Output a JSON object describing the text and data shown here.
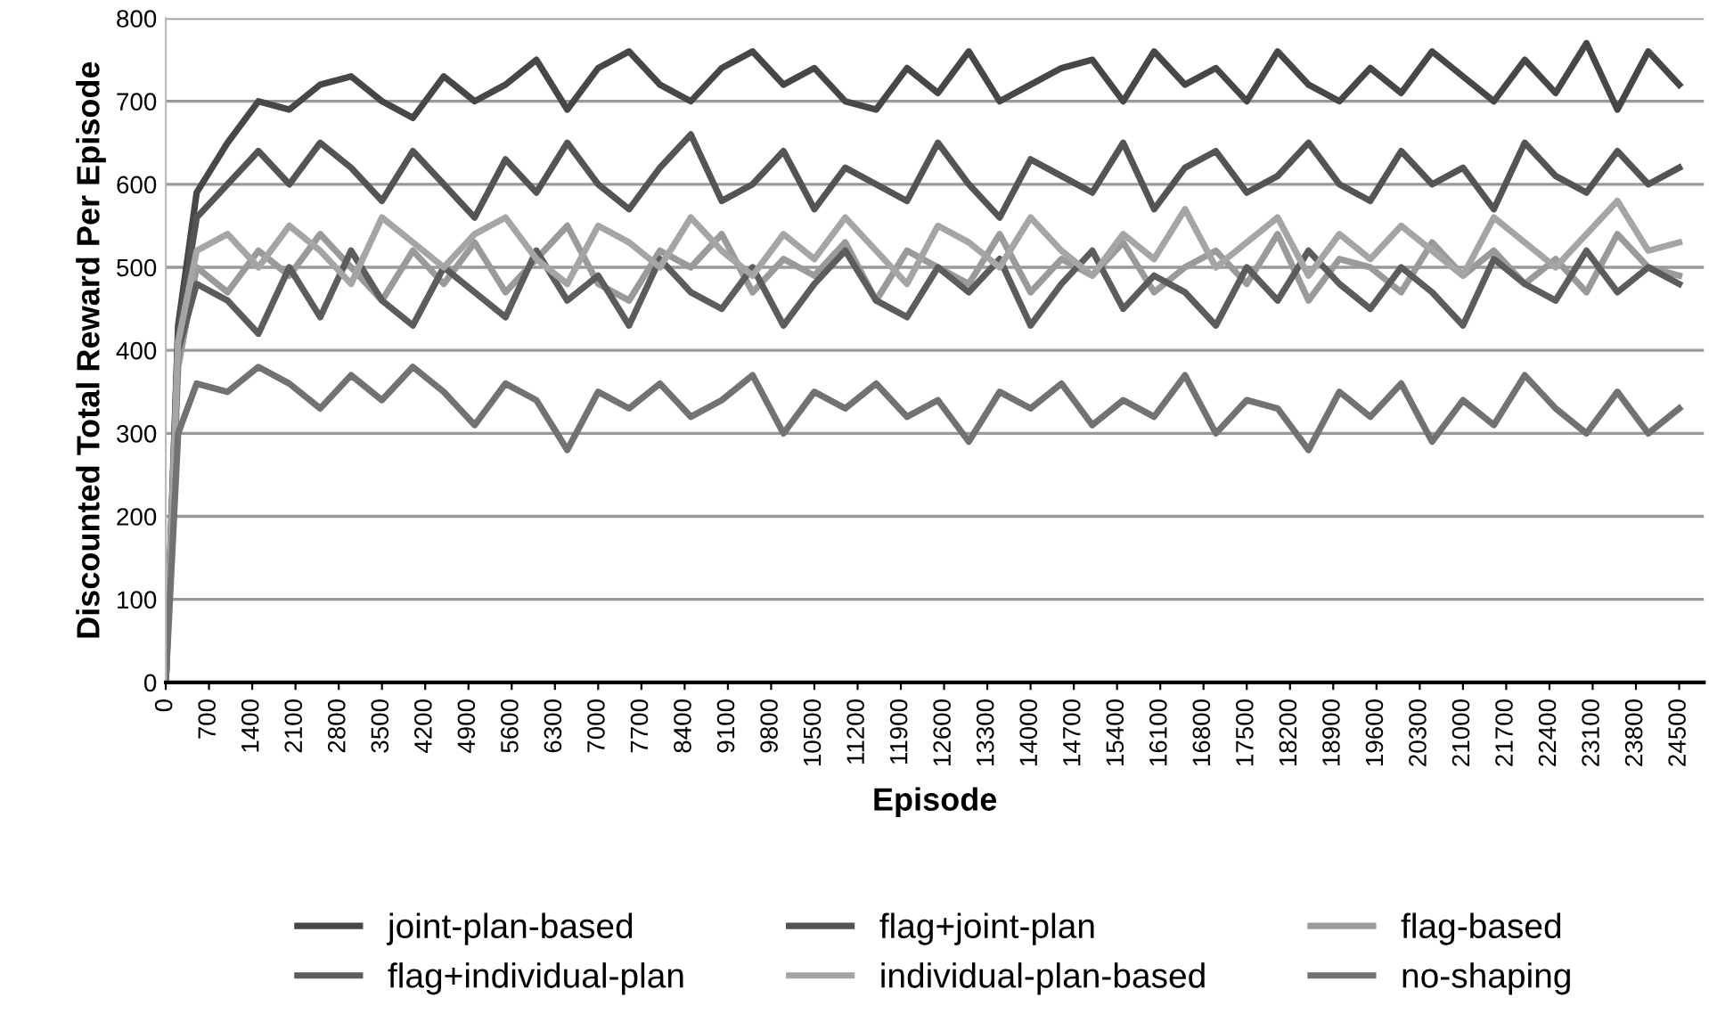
{
  "chart_data": {
    "type": "line",
    "xlabel": "Episode",
    "ylabel": "Discounted Total Reward Per Episode",
    "x": [
      0,
      200,
      500,
      1000,
      1500,
      2000,
      2500,
      3000,
      3500,
      4000,
      4500,
      5000,
      5500,
      6000,
      6500,
      7000,
      7500,
      8000,
      8500,
      9000,
      9500,
      10000,
      10500,
      11000,
      11500,
      12000,
      12500,
      13000,
      13500,
      14000,
      14500,
      15000,
      15500,
      16000,
      16500,
      17000,
      17500,
      18000,
      18500,
      19000,
      19500,
      20000,
      20500,
      21000,
      21500,
      22000,
      22500,
      23000,
      23500,
      24000,
      24500
    ],
    "series": [
      {
        "name": "joint-plan-based",
        "color": "#474747",
        "values": [
          0,
          430,
          590,
          650,
          700,
          690,
          720,
          730,
          700,
          680,
          730,
          700,
          720,
          750,
          690,
          740,
          760,
          720,
          700,
          740,
          760,
          720,
          740,
          700,
          690,
          740,
          710,
          760,
          700,
          720,
          740,
          750,
          700,
          760,
          720,
          740,
          700,
          760,
          720,
          700,
          740,
          710,
          760,
          730,
          700,
          750,
          710,
          770,
          690,
          760,
          720
        ]
      },
      {
        "name": "flag+joint-plan",
        "color": "#545454",
        "values": [
          0,
          420,
          560,
          600,
          640,
          600,
          650,
          620,
          580,
          640,
          600,
          560,
          630,
          590,
          650,
          600,
          570,
          620,
          660,
          580,
          600,
          640,
          570,
          620,
          600,
          580,
          650,
          600,
          560,
          630,
          610,
          590,
          650,
          570,
          620,
          640,
          590,
          610,
          650,
          600,
          580,
          640,
          600,
          620,
          570,
          650,
          610,
          590,
          640,
          600,
          620
        ]
      },
      {
        "name": "flag-based",
        "color": "#9a9a9a",
        "values": [
          0,
          380,
          500,
          470,
          520,
          490,
          540,
          500,
          460,
          520,
          480,
          530,
          470,
          510,
          550,
          480,
          460,
          520,
          500,
          540,
          470,
          510,
          490,
          530,
          460,
          520,
          500,
          480,
          540,
          470,
          510,
          490,
          530,
          470,
          500,
          520,
          480,
          540,
          460,
          510,
          500,
          470,
          530,
          490,
          520,
          480,
          510,
          470,
          540,
          500,
          490
        ]
      },
      {
        "name": "flag+individual-plan",
        "color": "#5c5c5c",
        "values": [
          0,
          400,
          480,
          460,
          420,
          500,
          440,
          520,
          460,
          430,
          500,
          470,
          440,
          520,
          460,
          490,
          430,
          510,
          470,
          450,
          500,
          430,
          480,
          520,
          460,
          440,
          500,
          470,
          510,
          430,
          480,
          520,
          450,
          490,
          470,
          430,
          500,
          460,
          520,
          480,
          450,
          500,
          470,
          430,
          510,
          480,
          460,
          520,
          470,
          500,
          480
        ]
      },
      {
        "name": "individual-plan-based",
        "color": "#a5a5a5",
        "values": [
          0,
          410,
          520,
          540,
          500,
          550,
          520,
          480,
          560,
          530,
          500,
          540,
          560,
          510,
          480,
          550,
          530,
          500,
          560,
          520,
          490,
          540,
          510,
          560,
          520,
          480,
          550,
          530,
          500,
          560,
          520,
          490,
          540,
          510,
          570,
          500,
          530,
          560,
          490,
          540,
          510,
          550,
          520,
          490,
          560,
          530,
          500,
          540,
          580,
          520,
          530
        ]
      },
      {
        "name": "no-shaping",
        "color": "#727272",
        "values": [
          0,
          300,
          360,
          350,
          380,
          360,
          330,
          370,
          340,
          380,
          350,
          310,
          360,
          340,
          280,
          350,
          330,
          360,
          320,
          340,
          370,
          300,
          350,
          330,
          360,
          320,
          340,
          290,
          350,
          330,
          360,
          310,
          340,
          320,
          370,
          300,
          340,
          330,
          280,
          350,
          320,
          360,
          290,
          340,
          310,
          370,
          330,
          300,
          350,
          300,
          330
        ]
      }
    ],
    "xlim": [
      0,
      24900
    ],
    "ylim": [
      0,
      800
    ],
    "xticks": [
      0,
      700,
      1400,
      2100,
      2800,
      3500,
      4200,
      4900,
      5600,
      6300,
      7000,
      7700,
      8400,
      9100,
      9800,
      10500,
      11200,
      11900,
      12600,
      13300,
      14000,
      14700,
      15400,
      16100,
      16800,
      17500,
      18200,
      18900,
      19600,
      20300,
      21000,
      21700,
      22400,
      23100,
      23800,
      24500
    ],
    "yticks": [
      0,
      100,
      200,
      300,
      400,
      500,
      600,
      700,
      800
    ],
    "grid": "y",
    "legend": "bottom",
    "marker": "none",
    "line_style": "solid"
  }
}
